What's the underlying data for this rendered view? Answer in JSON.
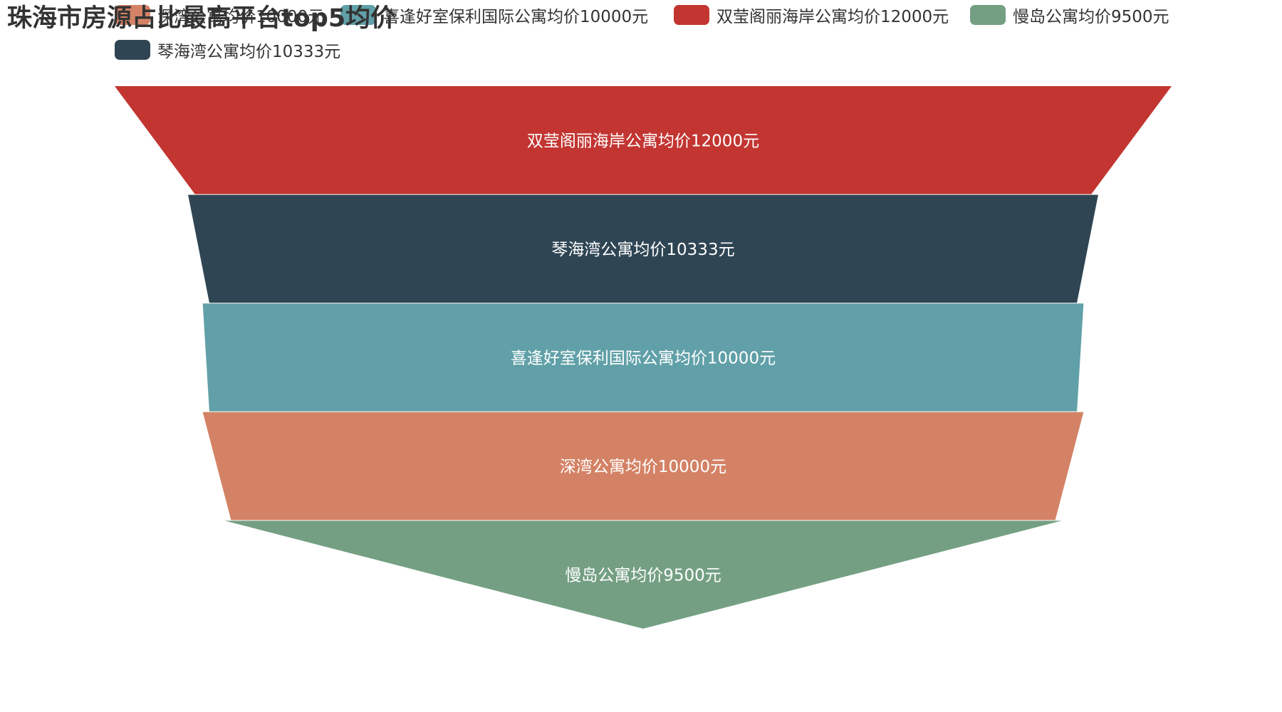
{
  "title": "珠海市房源占比最高平台top5均价",
  "colors": {
    "salmon": "#d48265",
    "teal": "#61a0a8",
    "red": "#c23531",
    "green": "#749f83",
    "navy": "#2f4554"
  },
  "chart_data": {
    "type": "funnel",
    "title": "珠海市房源占比最高平台top5均价",
    "legend_position": "top",
    "legend": [
      {
        "name": "深湾公寓均价10000元",
        "color": "#d48265"
      },
      {
        "name": "喜逢好室保利国际公寓均价10000元",
        "color": "#61a0a8"
      },
      {
        "name": "双莹阁丽海岸公寓均价12000元",
        "color": "#c23531"
      },
      {
        "name": "慢岛公寓均价9500元",
        "color": "#749f83"
      },
      {
        "name": "琴海湾公寓均价10333元",
        "color": "#2f4554"
      }
    ],
    "segments": [
      {
        "name": "双莹阁丽海岸公寓均价12000元",
        "value": 12000,
        "color": "#c23531"
      },
      {
        "name": "琴海湾公寓均价10333元",
        "value": 10333,
        "color": "#2f4554"
      },
      {
        "name": "喜逢好室保利国际公寓均价10000元",
        "value": 10000,
        "color": "#61a0a8"
      },
      {
        "name": "深湾公寓均价10000元",
        "value": 10000,
        "color": "#d48265"
      },
      {
        "name": "慢岛公寓均价9500元",
        "value": 9500,
        "color": "#749f83"
      }
    ]
  }
}
